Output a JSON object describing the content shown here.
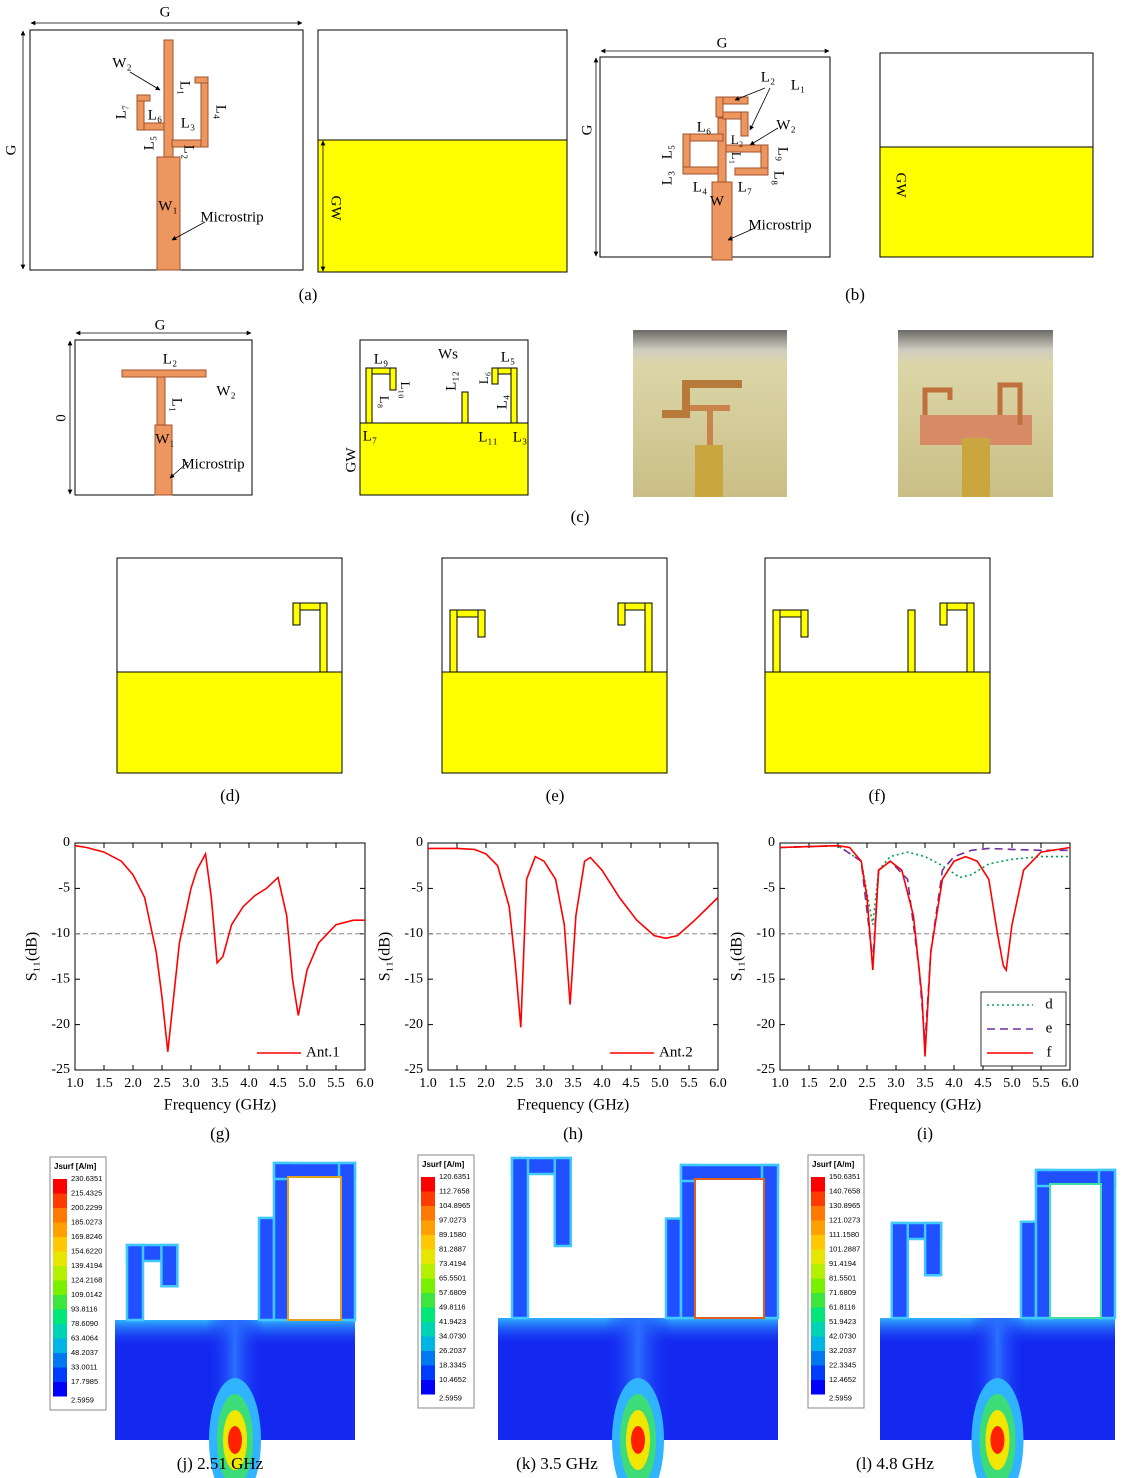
{
  "panels": {
    "a": {
      "caption": "(a)",
      "labels": [
        "G",
        "G",
        "W₂",
        "L₁",
        "L₄",
        "L₇",
        "L₆",
        "L₃",
        "L₅",
        "L₂",
        "W₁",
        "Microstrip",
        "GW"
      ]
    },
    "b": {
      "caption": "(b)",
      "labels": [
        "G",
        "G",
        "L₂",
        "L₁",
        "W₂",
        "L₆",
        "L₅",
        "L₃",
        "L₄",
        "L₇",
        "L₉",
        "L₈",
        "L₂",
        "L₁",
        "W",
        "Microstrip",
        "GW"
      ]
    },
    "c": {
      "caption": "(c)",
      "labels": [
        "G",
        "0",
        "L₂",
        "W₂",
        "L₁",
        "W₁",
        "Microstrip",
        "L₉",
        "L₁₀",
        "L₈",
        "L₇",
        "Ws",
        "L₁₂",
        "L₆",
        "L₅",
        "L₄",
        "L₁₁",
        "L₃",
        "GW"
      ]
    },
    "d": {
      "caption": "(d)"
    },
    "e": {
      "caption": "(e)"
    },
    "f": {
      "caption": "(f)"
    }
  },
  "chart_data": [
    {
      "type": "line",
      "caption": "(g)",
      "xlabel": "Frequency (GHz)",
      "ylabel": "S₁₁(dB)",
      "xlim": [
        1,
        6
      ],
      "ylim": [
        -25,
        0
      ],
      "xticks": [
        {
          "value": 1,
          "label": "1.0"
        },
        {
          "value": 1.5,
          "label": "1.5"
        },
        {
          "value": 2,
          "label": "2.0"
        },
        {
          "value": 2.5,
          "label": "2.5"
        },
        {
          "value": 3,
          "label": "3.0"
        },
        {
          "value": 3.5,
          "label": "3.5"
        },
        {
          "value": 4,
          "label": "4.0"
        },
        {
          "value": 4.5,
          "label": "4.5"
        },
        {
          "value": 5,
          "label": "5.0"
        },
        {
          "value": 5.5,
          "label": "5.5"
        },
        {
          "value": 6,
          "label": "6.0"
        }
      ],
      "yticks": [
        0,
        -5,
        -10,
        -15,
        -20,
        -25
      ],
      "reference_line": -10,
      "legend": "lower right",
      "series": [
        {
          "name": "Ant.1",
          "color": "#ff0000",
          "style": "solid",
          "x": [
            1.0,
            1.2,
            1.5,
            1.8,
            2.0,
            2.2,
            2.4,
            2.5,
            2.6,
            2.7,
            2.8,
            3.0,
            3.1,
            3.25,
            3.35,
            3.45,
            3.55,
            3.7,
            3.9,
            4.1,
            4.3,
            4.5,
            4.65,
            4.75,
            4.85,
            5.0,
            5.2,
            5.5,
            5.8,
            6.0
          ],
          "values": [
            -0.3,
            -0.5,
            -1,
            -2,
            -3.5,
            -6,
            -12,
            -17,
            -23,
            -17,
            -11,
            -5,
            -3,
            -1.2,
            -6,
            -13.2,
            -12.5,
            -9,
            -7,
            -5.8,
            -5,
            -3.8,
            -8,
            -15,
            -19,
            -14,
            -11,
            -9,
            -8.5,
            -8.5
          ]
        }
      ]
    },
    {
      "type": "line",
      "caption": "(h)",
      "xlabel": "Frequency (GHz)",
      "ylabel": "S₁₁(dB)",
      "xlim": [
        1,
        6
      ],
      "ylim": [
        -25,
        0
      ],
      "xticks": [
        {
          "value": 1,
          "label": "1.0"
        },
        {
          "value": 1.5,
          "label": "1.5"
        },
        {
          "value": 2,
          "label": "2.0"
        },
        {
          "value": 2.5,
          "label": "2.5"
        },
        {
          "value": 3,
          "label": "3.0"
        },
        {
          "value": 3.5,
          "label": "3.5"
        },
        {
          "value": 4,
          "label": "4.0"
        },
        {
          "value": 4.5,
          "label": "4.5"
        },
        {
          "value": 5,
          "label": "5.0"
        },
        {
          "value": 5.5,
          "label": "5.5"
        },
        {
          "value": 6,
          "label": "6.0"
        }
      ],
      "yticks": [
        0,
        -5,
        -10,
        -15,
        -20,
        -25
      ],
      "reference_line": -10,
      "legend": "lower right",
      "series": [
        {
          "name": "Ant.2",
          "color": "#ff0000",
          "style": "solid",
          "x": [
            1.0,
            1.5,
            1.8,
            2.0,
            2.2,
            2.4,
            2.5,
            2.6,
            2.7,
            2.85,
            3.0,
            3.2,
            3.35,
            3.45,
            3.55,
            3.7,
            3.8,
            4.0,
            4.3,
            4.6,
            4.9,
            5.1,
            5.3,
            5.6,
            6.0
          ],
          "values": [
            -0.6,
            -0.6,
            -0.7,
            -1.2,
            -2.5,
            -7,
            -13,
            -20.3,
            -4,
            -1.5,
            -2,
            -4,
            -9,
            -17.8,
            -8,
            -2,
            -1.6,
            -3,
            -6,
            -8.5,
            -10.2,
            -10.5,
            -10.2,
            -8.5,
            -6
          ]
        }
      ]
    },
    {
      "type": "line",
      "caption": "(i)",
      "xlabel": "Frequency (GHz)",
      "ylabel": "S₁₁(dB)",
      "xlim": [
        1,
        6
      ],
      "ylim": [
        -25,
        0
      ],
      "xticks": [
        {
          "value": 1,
          "label": "1.0"
        },
        {
          "value": 1.5,
          "label": "1.5"
        },
        {
          "value": 2,
          "label": "2.0"
        },
        {
          "value": 2.5,
          "label": "2.5"
        },
        {
          "value": 3,
          "label": "3.0"
        },
        {
          "value": 3.5,
          "label": "3.5"
        },
        {
          "value": 4,
          "label": "4.0"
        },
        {
          "value": 4.5,
          "label": "4.5"
        },
        {
          "value": 5,
          "label": "5.0"
        },
        {
          "value": 5.5,
          "label": "5.5"
        },
        {
          "value": 6,
          "label": "6.0"
        }
      ],
      "yticks": [
        0,
        -5,
        -10,
        -15,
        -20,
        -25
      ],
      "reference_line": -10,
      "legend": "lower right",
      "series": [
        {
          "name": "d",
          "color": "#00a050",
          "style": "dotted",
          "x": [
            1.0,
            2.0,
            2.4,
            2.6,
            2.7,
            2.9,
            3.2,
            3.5,
            3.8,
            4.1,
            4.3,
            4.6,
            5.0,
            5.5,
            6.0
          ],
          "values": [
            -0.5,
            -0.3,
            -2,
            -9,
            -3,
            -1.5,
            -1,
            -1.5,
            -2.5,
            -3.8,
            -3.5,
            -2.3,
            -1.8,
            -1.5,
            -1.5
          ]
        },
        {
          "name": "e",
          "color": "#7030a0",
          "style": "dashed",
          "x": [
            1.0,
            2.0,
            2.4,
            2.6,
            2.7,
            2.9,
            3.2,
            3.4,
            3.5,
            3.6,
            3.8,
            4.0,
            4.3,
            4.6,
            5.0,
            5.5,
            6.0
          ],
          "values": [
            -0.5,
            -0.3,
            -2,
            -13,
            -3,
            -2,
            -4,
            -14,
            -22,
            -12,
            -3,
            -1.5,
            -0.8,
            -0.6,
            -0.7,
            -0.8,
            -0.8
          ]
        },
        {
          "name": "f",
          "color": "#ff0000",
          "style": "solid",
          "x": [
            1.0,
            1.5,
            2.0,
            2.2,
            2.4,
            2.5,
            2.6,
            2.7,
            2.9,
            3.1,
            3.3,
            3.45,
            3.5,
            3.6,
            3.8,
            4.0,
            4.2,
            4.4,
            4.6,
            4.75,
            4.85,
            4.9,
            5.0,
            5.2,
            5.5,
            6.0
          ],
          "values": [
            -0.5,
            -0.4,
            -0.3,
            -0.5,
            -2,
            -6,
            -14,
            -3,
            -2,
            -3,
            -8,
            -17,
            -23.5,
            -12,
            -4,
            -2,
            -1.5,
            -2,
            -4,
            -10,
            -13.5,
            -14,
            -9,
            -3,
            -1,
            -0.5
          ]
        }
      ]
    }
  ],
  "maps": [
    {
      "caption": "(j) 2.51 GHz",
      "title": "Jsurf [A/m]",
      "scale": [
        "230.6351",
        "215.4325",
        "200.2299",
        "185.0273",
        "169.8246",
        "154.6220",
        "139.4194",
        "124.2168",
        "109.0142",
        "93.8116",
        "78.6090",
        "63.4064",
        "48.2037",
        "33.0011",
        "17.7985",
        "2.5959"
      ]
    },
    {
      "caption": "(k) 3.5 GHz",
      "title": "Jsurf [A/m]",
      "scale": [
        "120.6351",
        "112.7658",
        "104.8965",
        "97.0273",
        "89.1580",
        "81.2887",
        "73.4194",
        "65.5501",
        "57.6809",
        "49.8116",
        "41.9423",
        "34.0730",
        "26.2037",
        "18.3345",
        "10.4652",
        "2.5959"
      ]
    },
    {
      "caption": "(l) 4.8 GHz",
      "title": "Jsurf [A/m]",
      "scale": [
        "150.6351",
        "140.7658",
        "130.8965",
        "121.0273",
        "111.1580",
        "101.2887",
        "91.4194",
        "81.5501",
        "71.6809",
        "61.8116",
        "51.9423",
        "42.0730",
        "32.2037",
        "22.3345",
        "12.4652",
        "2.5959"
      ]
    }
  ]
}
